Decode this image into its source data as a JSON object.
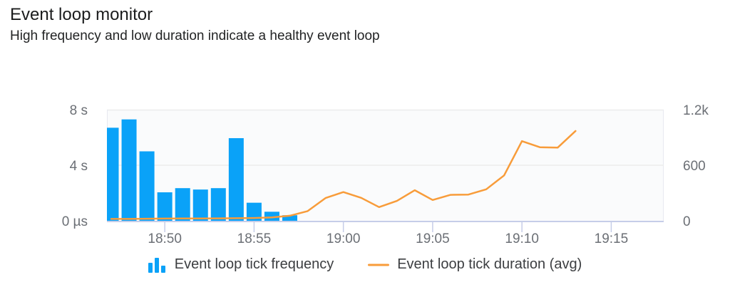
{
  "header": {
    "title": "Event loop monitor",
    "subtitle": "High frequency and low duration indicate a healthy event loop"
  },
  "colors": {
    "bar_blue": "#0aa2f8",
    "line_orange": "#f89c3a",
    "axis_baseline": "#c6cde8",
    "grid_line": "#ececec",
    "plot_border": "#e7e9f0",
    "plot_fill": "#fafbfc",
    "tick_label": "#6b6f75",
    "legend_text": "#3c3e41"
  },
  "legend": {
    "items": [
      {
        "icon": "bar-chart-icon",
        "label": "Event loop tick frequency"
      },
      {
        "icon": "line-icon",
        "label": "Event loop tick duration (avg)"
      }
    ]
  },
  "chart_data": {
    "type": "bar+line",
    "title": "Event loop monitor",
    "grid": "horizontal",
    "legend_position": "bottom",
    "x_axis": {
      "tick_labels": [
        "18:50",
        "18:55",
        "19:00",
        "19:05",
        "19:10",
        "19:15"
      ],
      "visible_range": [
        "18:46",
        "19:18"
      ]
    },
    "left_axis": {
      "range": [
        0,
        8
      ],
      "ticks": [
        {
          "value": 0,
          "label": "0 µs"
        },
        {
          "value": 4,
          "label": "4 s"
        },
        {
          "value": 8,
          "label": "8 s"
        }
      ]
    },
    "right_axis": {
      "range": [
        0,
        1200
      ],
      "ticks": [
        {
          "value": 0,
          "label": "0"
        },
        {
          "value": 600,
          "label": "600"
        },
        {
          "value": 1200,
          "label": "1.2k"
        }
      ]
    },
    "series": [
      {
        "name": "Event loop tick frequency",
        "type": "bar",
        "axis": "left",
        "unit": "s",
        "x": [
          "18:47",
          "18:48",
          "18:49",
          "18:50",
          "18:51",
          "18:52",
          "18:53",
          "18:54",
          "18:55",
          "18:56",
          "18:57"
        ],
        "values": [
          6.7,
          7.3,
          5.0,
          2.05,
          2.35,
          2.25,
          2.35,
          5.95,
          1.3,
          0.65,
          0.4
        ]
      },
      {
        "name": "Event loop tick duration (avg)",
        "type": "line",
        "axis": "right",
        "x": [
          "18:47",
          "18:48",
          "18:49",
          "18:50",
          "18:51",
          "18:52",
          "18:53",
          "18:54",
          "18:55",
          "18:56",
          "18:57",
          "18:58",
          "18:59",
          "19:00",
          "19:01",
          "19:02",
          "19:03",
          "19:04",
          "19:05",
          "19:06",
          "19:07",
          "19:08",
          "19:09",
          "19:10",
          "19:11",
          "19:12",
          "19:13"
        ],
        "values": [
          20,
          20,
          22,
          24,
          25,
          25,
          26,
          28,
          30,
          36,
          55,
          105,
          245,
          310,
          248,
          148,
          215,
          330,
          225,
          280,
          283,
          340,
          490,
          860,
          795,
          790,
          970
        ]
      }
    ]
  }
}
